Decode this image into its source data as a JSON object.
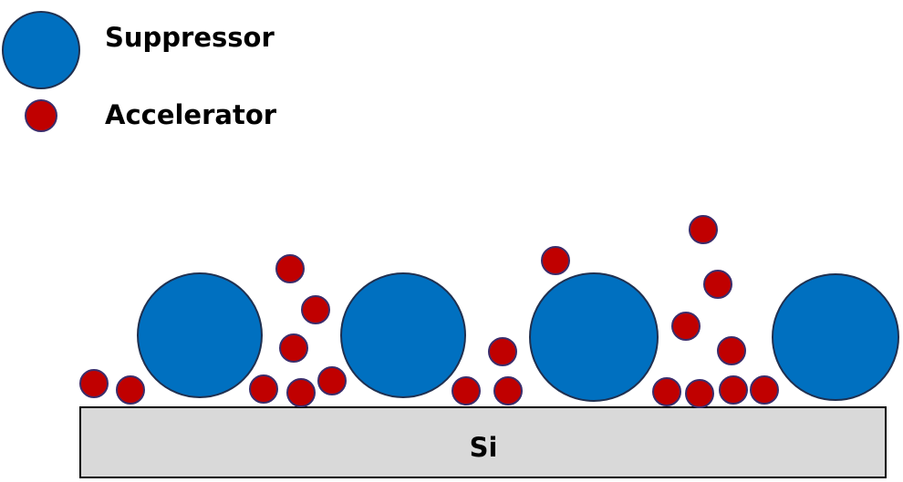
{
  "legend": [
    {
      "label": "Suppressor"
    },
    {
      "label": "Accelerator"
    }
  ],
  "substrate": {
    "label": "Si"
  }
}
